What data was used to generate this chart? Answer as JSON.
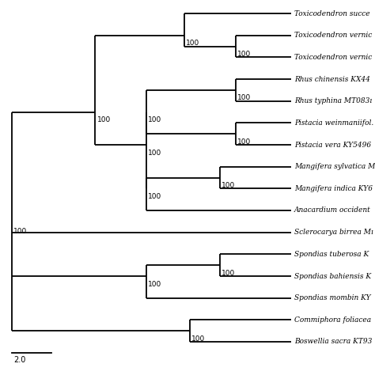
{
  "taxa": [
    "Toxicodendron succe",
    "Toxicodendron vernic",
    "Toxicodendron vernic",
    "Rhus chinensis KX44",
    "Rhus typhina MT083ı",
    "Pistacia weinmaniifol.",
    "Pistacia vera KY5496",
    "Mangifera sylvatica M",
    "Mangifera indica KY6",
    "Anacardium occident",
    "Sclerocarya birrea Mı",
    "Spondias tuberosa K",
    "Spondias bahiensis K",
    "Spondias mombin KY",
    "Commiphora foliacea",
    "Boswellia sacra KT93"
  ],
  "background_color": "#ffffff",
  "line_color": "#000000",
  "text_color": "#000000",
  "scale_bar_value": "2.0",
  "lw": 1.3
}
